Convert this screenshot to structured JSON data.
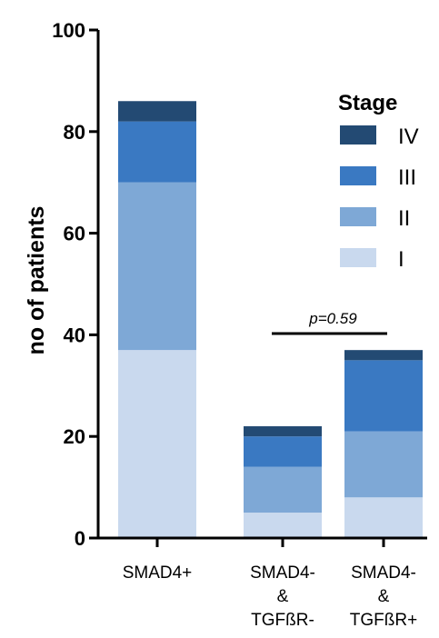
{
  "chart_data": {
    "type": "bar",
    "stacked": true,
    "categories": [
      [
        "SMAD4+"
      ],
      [
        "SMAD4-",
        "&",
        "TGFßR-"
      ],
      [
        "SMAD4-",
        "&",
        "TGFßR+"
      ]
    ],
    "series": [
      {
        "name": "I",
        "values": [
          37,
          5,
          8
        ],
        "color": "#c9d9ee"
      },
      {
        "name": "II",
        "values": [
          33,
          9,
          13
        ],
        "color": "#7ea8d6"
      },
      {
        "name": "III",
        "values": [
          12,
          6,
          14
        ],
        "color": "#3a79c2"
      },
      {
        "name": "IV",
        "values": [
          4,
          2,
          2
        ],
        "color": "#234a73"
      }
    ],
    "ylabel": "no of patients",
    "ylim": [
      0,
      100
    ],
    "yticks": [
      0,
      20,
      40,
      60,
      80,
      100
    ],
    "grid": false,
    "legend": {
      "title": "Stage",
      "placement": "top-right"
    },
    "annotation": {
      "text": "p=0.59",
      "between": [
        1,
        2
      ]
    }
  }
}
